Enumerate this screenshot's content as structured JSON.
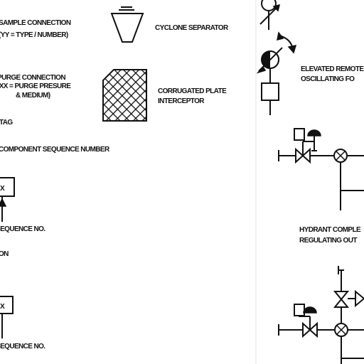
{
  "legend_left": {
    "sample_connection": [
      "SAMPLE CONNECTION",
      "(YY = TYPE / NUMBER)"
    ],
    "purge_connection": [
      "PURGE CONNECTION",
      "(XX = PURGE PRESURE",
      "& MEDIUM)"
    ],
    "tag": "TAG",
    "component_sequence": "COMPONENT SEQUENCE NUMBER",
    "box_code_1": "X",
    "sequence_no_1": "SEQUENCE NO.",
    "on_label": "ON",
    "box_code_2": "X",
    "sequence_no_2": "SEQUENCE NO."
  },
  "legend_middle": {
    "cyclone_separator": "CYCLONE SEPARATOR",
    "corrugated_plate": [
      "CORRUGATED PLATE",
      "INTERCEPTOR"
    ]
  },
  "legend_right": {
    "elevated_remote": [
      "ELEVATED REMOTE",
      "OSCILLATING FO"
    ],
    "hydrant": [
      "HYDRANT COMPLE",
      "REGULATING OUT"
    ]
  }
}
